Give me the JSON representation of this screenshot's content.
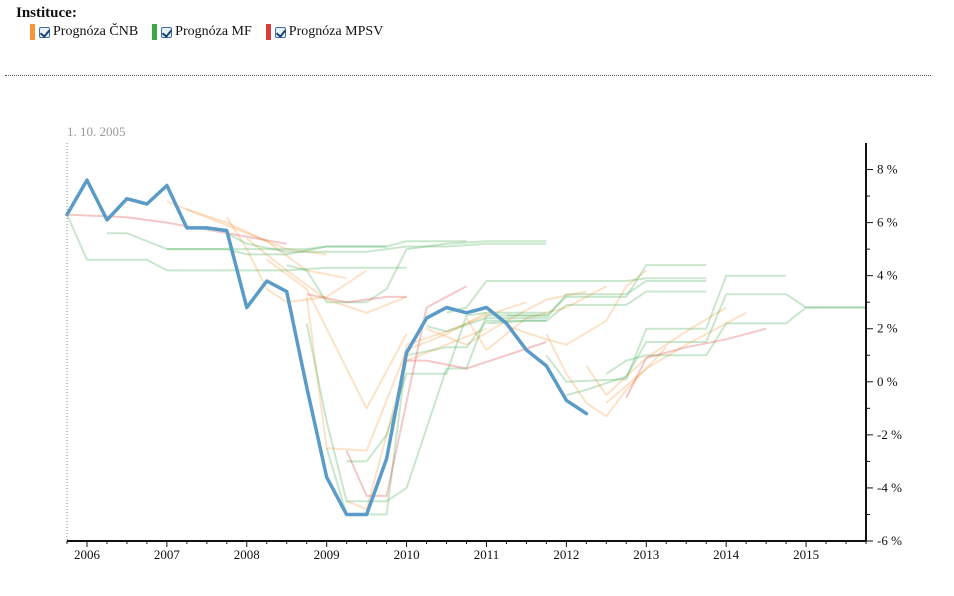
{
  "legend": {
    "title": "Instituce:",
    "items": [
      {
        "label": "Prognóza ČNB",
        "color": "#f5963a",
        "checked": true
      },
      {
        "label": "Prognóza MF",
        "color": "#3ca84a",
        "checked": true
      },
      {
        "label": "Prognóza MPSV",
        "color": "#d93a3a",
        "checked": true
      }
    ]
  },
  "chart_data": {
    "type": "line",
    "title": "",
    "xlabel": "",
    "ylabel": "",
    "date_label": "1. 10. 2005",
    "xlim": [
      2005.75,
      2015.75
    ],
    "ylim": [
      -6,
      9
    ],
    "x_ticks": [
      "2006",
      "2007",
      "2008",
      "2009",
      "2010",
      "2011",
      "2012",
      "2013",
      "2014",
      "2015"
    ],
    "y_ticks": [
      "8 %",
      "6 %",
      "4 %",
      "2 %",
      "0 %",
      "-2 %",
      "-4 %",
      "-6 %"
    ],
    "y_tick_values": [
      8,
      6,
      4,
      2,
      0,
      -2,
      -4,
      -6
    ],
    "grid": false,
    "series": [
      {
        "color": "#5b9bc8",
        "role": "actual",
        "x": [
          2005.75,
          2006.0,
          2006.25,
          2006.5,
          2006.75,
          2007.0,
          2007.25,
          2007.5,
          2007.75,
          2008.0,
          2008.25,
          2008.5,
          2008.75,
          2009.0,
          2009.25,
          2009.5,
          2009.75,
          2010.0,
          2010.25,
          2010.5,
          2010.75,
          2011.0,
          2011.25,
          2011.5,
          2011.75,
          2012.0,
          2012.25
        ],
        "y": [
          6.3,
          7.6,
          6.1,
          6.9,
          6.7,
          7.4,
          5.8,
          5.8,
          5.7,
          2.8,
          3.8,
          3.4,
          -0.2,
          -3.6,
          -5.0,
          -5.0,
          -2.9,
          1.1,
          2.4,
          2.8,
          2.6,
          2.8,
          2.2,
          1.2,
          0.6,
          -0.7,
          -1.2
        ]
      },
      {
        "color": "#f5963a",
        "role": "forecast",
        "x": [
          2007.0,
          2007.5,
          2008.0,
          2008.5,
          2009.0
        ],
        "y": [
          6.8,
          6.2,
          5.6,
          5.0,
          4.8
        ]
      },
      {
        "color": "#f5963a",
        "role": "forecast",
        "x": [
          2007.25,
          2007.75,
          2008.25,
          2008.75,
          2009.25
        ],
        "y": [
          6.5,
          6.0,
          5.3,
          4.2,
          3.9
        ]
      },
      {
        "color": "#f5963a",
        "role": "forecast",
        "x": [
          2007.75,
          2008.0,
          2008.25,
          2008.5,
          2009.0,
          2009.5
        ],
        "y": [
          6.2,
          5.0,
          3.5,
          3.0,
          3.2,
          4.2
        ]
      },
      {
        "color": "#f5963a",
        "role": "forecast",
        "x": [
          2008.0,
          2008.5,
          2009.0,
          2009.5,
          2010.0
        ],
        "y": [
          5.4,
          4.2,
          3.1,
          2.6,
          3.2
        ]
      },
      {
        "color": "#f5963a",
        "role": "forecast",
        "x": [
          2008.25,
          2008.75,
          2009.0,
          2009.5,
          2010.0
        ],
        "y": [
          4.6,
          3.5,
          2.0,
          -1.0,
          1.8
        ]
      },
      {
        "color": "#f5963a",
        "role": "forecast",
        "x": [
          2008.75,
          2009.0,
          2009.5,
          2010.0,
          2010.5,
          2011.0
        ],
        "y": [
          3.2,
          -2.5,
          -2.6,
          1.2,
          1.8,
          2.6
        ]
      },
      {
        "color": "#f5963a",
        "role": "forecast",
        "x": [
          2009.25,
          2009.5,
          2010.0,
          2010.5,
          2011.0
        ],
        "y": [
          -4.5,
          -4.8,
          0.8,
          1.4,
          2.0
        ]
      },
      {
        "color": "#f5963a",
        "role": "forecast",
        "x": [
          2009.75,
          2010.0,
          2010.5,
          2011.0,
          2011.5
        ],
        "y": [
          -2.8,
          1.4,
          1.9,
          2.5,
          3.0
        ]
      },
      {
        "color": "#f5963a",
        "role": "forecast",
        "x": [
          2010.25,
          2010.75,
          2011.25,
          2011.75,
          2012.25
        ],
        "y": [
          2.0,
          1.4,
          2.3,
          3.1,
          3.4
        ]
      },
      {
        "color": "#f5963a",
        "role": "forecast",
        "x": [
          2010.75,
          2011.0,
          2011.5,
          2012.0,
          2012.5
        ],
        "y": [
          2.4,
          1.2,
          2.4,
          2.8,
          3.6
        ]
      },
      {
        "color": "#f5963a",
        "role": "forecast",
        "x": [
          2011.25,
          2011.75,
          2012.0,
          2012.5,
          2012.75,
          2013.0
        ],
        "y": [
          2.1,
          1.6,
          1.4,
          2.3,
          3.6,
          4.2
        ]
      },
      {
        "color": "#f5963a",
        "role": "forecast",
        "x": [
          2011.75,
          2012.0,
          2012.25,
          2012.5,
          2012.75,
          2013.25
        ],
        "y": [
          1.8,
          0.3,
          -0.8,
          -1.3,
          -0.3,
          1.3
        ]
      },
      {
        "color": "#f5963a",
        "role": "forecast",
        "x": [
          2012.25,
          2012.5,
          2013.0,
          2013.5,
          2014.0
        ],
        "y": [
          0.6,
          -0.5,
          0.9,
          1.9,
          2.8
        ]
      },
      {
        "color": "#f5963a",
        "role": "forecast",
        "x": [
          2012.5,
          2013.0,
          2013.5,
          2014.0,
          2014.25
        ],
        "y": [
          -0.8,
          0.5,
          1.4,
          2.2,
          2.6
        ]
      },
      {
        "color": "#3ca84a",
        "role": "forecast",
        "x": [
          2005.75,
          2006.0,
          2006.5,
          2006.75,
          2007.0,
          2007.5,
          2008.0,
          2008.5,
          2009.0,
          2009.5,
          2010.0
        ],
        "y": [
          6.3,
          4.6,
          4.6,
          4.6,
          4.2,
          4.2,
          4.2,
          4.2,
          4.3,
          4.3,
          4.3
        ]
      },
      {
        "color": "#3ca84a",
        "role": "forecast",
        "x": [
          2006.25,
          2006.5,
          2007.0,
          2007.75,
          2008.0,
          2008.5,
          2009.0,
          2009.75
        ],
        "y": [
          5.6,
          5.6,
          5.0,
          5.0,
          4.8,
          4.8,
          5.1,
          5.1
        ]
      },
      {
        "color": "#3ca84a",
        "role": "forecast",
        "x": [
          2007.0,
          2007.25,
          2008.0,
          2008.75,
          2009.0,
          2009.75,
          2010.0,
          2010.75
        ],
        "y": [
          5.0,
          5.0,
          5.0,
          5.0,
          5.1,
          5.1,
          5.3,
          5.3
        ]
      },
      {
        "color": "#3ca84a",
        "role": "forecast",
        "x": [
          2007.75,
          2008.0,
          2008.5,
          2009.0,
          2009.5,
          2010.0,
          2010.5,
          2011.0,
          2011.75
        ],
        "y": [
          5.6,
          5.2,
          4.9,
          4.9,
          4.9,
          5.1,
          5.1,
          5.2,
          5.2
        ]
      },
      {
        "color": "#3ca84a",
        "role": "forecast",
        "x": [
          2008.5,
          2008.75,
          2009.0,
          2009.5,
          2009.75,
          2010.0,
          2010.5,
          2011.0,
          2011.75
        ],
        "y": [
          4.4,
          4.2,
          3.0,
          3.0,
          3.5,
          5.0,
          5.2,
          5.3,
          5.3
        ]
      },
      {
        "color": "#3ca84a",
        "role": "forecast",
        "x": [
          2008.75,
          2009.0,
          2009.25,
          2009.75,
          2010.0,
          2010.5,
          2010.75,
          2011.0,
          2011.75
        ],
        "y": [
          2.2,
          -1.5,
          -4.5,
          -4.5,
          -4.0,
          0.5,
          0.5,
          2.5,
          2.5
        ]
      },
      {
        "color": "#3ca84a",
        "role": "forecast",
        "x": [
          2009.25,
          2009.5,
          2009.75,
          2010.0,
          2010.5,
          2010.75,
          2011.0,
          2011.75
        ],
        "y": [
          -3.0,
          -3.0,
          -2.0,
          0.3,
          0.3,
          2.5,
          2.6,
          2.6
        ]
      },
      {
        "color": "#3ca84a",
        "role": "forecast",
        "x": [
          2009.0,
          2009.25,
          2009.75,
          2010.0,
          2010.5,
          2010.75,
          2011.0,
          2011.75
        ],
        "y": [
          -2.5,
          -5.0,
          -5.0,
          1.0,
          1.3,
          1.3,
          2.3,
          2.3
        ]
      },
      {
        "color": "#3ca84a",
        "role": "forecast",
        "x": [
          2010.25,
          2010.5,
          2011.0,
          2011.25,
          2011.75,
          2012.0,
          2012.75,
          2013.0,
          2013.75
        ],
        "y": [
          2.1,
          1.9,
          2.4,
          2.4,
          2.4,
          3.3,
          3.3,
          3.8,
          3.8
        ]
      },
      {
        "color": "#3ca84a",
        "role": "forecast",
        "x": [
          2010.5,
          2010.75,
          2011.0,
          2011.75,
          2012.0,
          2012.75,
          2013.0,
          2013.75
        ],
        "y": [
          2.6,
          2.8,
          3.8,
          3.8,
          3.8,
          3.8,
          3.9,
          3.9
        ]
      },
      {
        "color": "#3ca84a",
        "role": "forecast",
        "x": [
          2011.0,
          2011.5,
          2011.75,
          2012.0,
          2012.75,
          2013.0,
          2013.75
        ],
        "y": [
          2.2,
          2.3,
          2.3,
          2.9,
          2.9,
          3.4,
          3.4
        ]
      },
      {
        "color": "#3ca84a",
        "role": "forecast",
        "x": [
          2011.25,
          2011.75,
          2012.0,
          2012.75,
          2013.0,
          2013.75
        ],
        "y": [
          2.5,
          2.5,
          3.2,
          3.2,
          4.4,
          4.4
        ]
      },
      {
        "color": "#3ca84a",
        "role": "forecast",
        "x": [
          2011.75,
          2012.0,
          2012.75,
          2013.0,
          2013.75,
          2014.0,
          2014.75
        ],
        "y": [
          1.0,
          0.0,
          0.1,
          2.0,
          2.0,
          4.0,
          4.0
        ]
      },
      {
        "color": "#3ca84a",
        "role": "forecast",
        "x": [
          2012.0,
          2012.25,
          2012.75,
          2013.0,
          2013.75,
          2014.0,
          2014.75,
          2015.0,
          2015.75
        ],
        "y": [
          -0.5,
          -0.3,
          0.2,
          1.5,
          1.5,
          3.3,
          3.3,
          2.8,
          2.8
        ]
      },
      {
        "color": "#3ca84a",
        "role": "forecast",
        "x": [
          2012.5,
          2012.75,
          2013.0,
          2013.75,
          2014.0,
          2014.75,
          2015.0,
          2015.75
        ],
        "y": [
          0.3,
          0.8,
          1.0,
          1.0,
          2.2,
          2.2,
          2.8,
          2.8
        ]
      },
      {
        "color": "#d93a3a",
        "role": "forecast",
        "x": [
          2005.75,
          2006.5,
          2007.0,
          2007.75,
          2008.5
        ],
        "y": [
          6.3,
          6.2,
          6.0,
          5.6,
          5.2
        ]
      },
      {
        "color": "#d93a3a",
        "role": "forecast",
        "x": [
          2008.75,
          2009.25,
          2009.75,
          2010.0
        ],
        "y": [
          3.3,
          3.0,
          3.2,
          3.2
        ]
      },
      {
        "color": "#d93a3a",
        "role": "forecast",
        "x": [
          2009.25,
          2009.5,
          2009.75,
          2010.25,
          2010.75
        ],
        "y": [
          -2.6,
          -4.3,
          -4.3,
          2.8,
          3.6
        ]
      },
      {
        "color": "#d93a3a",
        "role": "forecast",
        "x": [
          2010.0,
          2010.25,
          2010.75,
          2011.25,
          2011.75
        ],
        "y": [
          0.8,
          0.8,
          0.5,
          1.0,
          1.5
        ]
      },
      {
        "color": "#d93a3a",
        "role": "forecast",
        "x": [
          2012.75,
          2013.0,
          2013.5,
          2014.0,
          2014.5
        ],
        "y": [
          -0.6,
          0.9,
          1.3,
          1.6,
          2.0
        ]
      }
    ]
  }
}
